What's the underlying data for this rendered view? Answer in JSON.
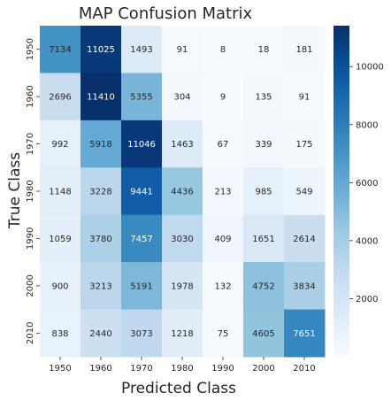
{
  "chart_data": {
    "type": "heatmap",
    "title": "MAP Confusion Matrix",
    "xlabel": "Predicted Class",
    "ylabel": "True Class",
    "x_categories": [
      "1950",
      "1960",
      "1970",
      "1980",
      "1990",
      "2000",
      "2010"
    ],
    "y_categories": [
      "1950",
      "1960",
      "1970",
      "1980",
      "1990",
      "2000",
      "2010"
    ],
    "values": [
      [
        7134,
        11025,
        1493,
        91,
        8,
        18,
        181
      ],
      [
        2696,
        11410,
        5355,
        304,
        9,
        135,
        91
      ],
      [
        992,
        5918,
        11046,
        1463,
        67,
        339,
        175
      ],
      [
        1148,
        3228,
        9441,
        4436,
        213,
        985,
        549
      ],
      [
        1059,
        3780,
        7457,
        3030,
        409,
        1651,
        2614
      ],
      [
        900,
        3213,
        5191,
        1978,
        132,
        4752,
        3834
      ],
      [
        838,
        2440,
        3073,
        1218,
        75,
        4605,
        7651
      ]
    ],
    "colormap": "Blues",
    "color_range": [
      0,
      11410
    ],
    "colorbar_ticks": [
      "2000",
      "4000",
      "6000",
      "8000",
      "10000"
    ],
    "colorbar_tick_values": [
      2000,
      4000,
      6000,
      8000,
      10000
    ],
    "colors": {
      "low": "#f7fbff",
      "high": "#08306b"
    }
  }
}
